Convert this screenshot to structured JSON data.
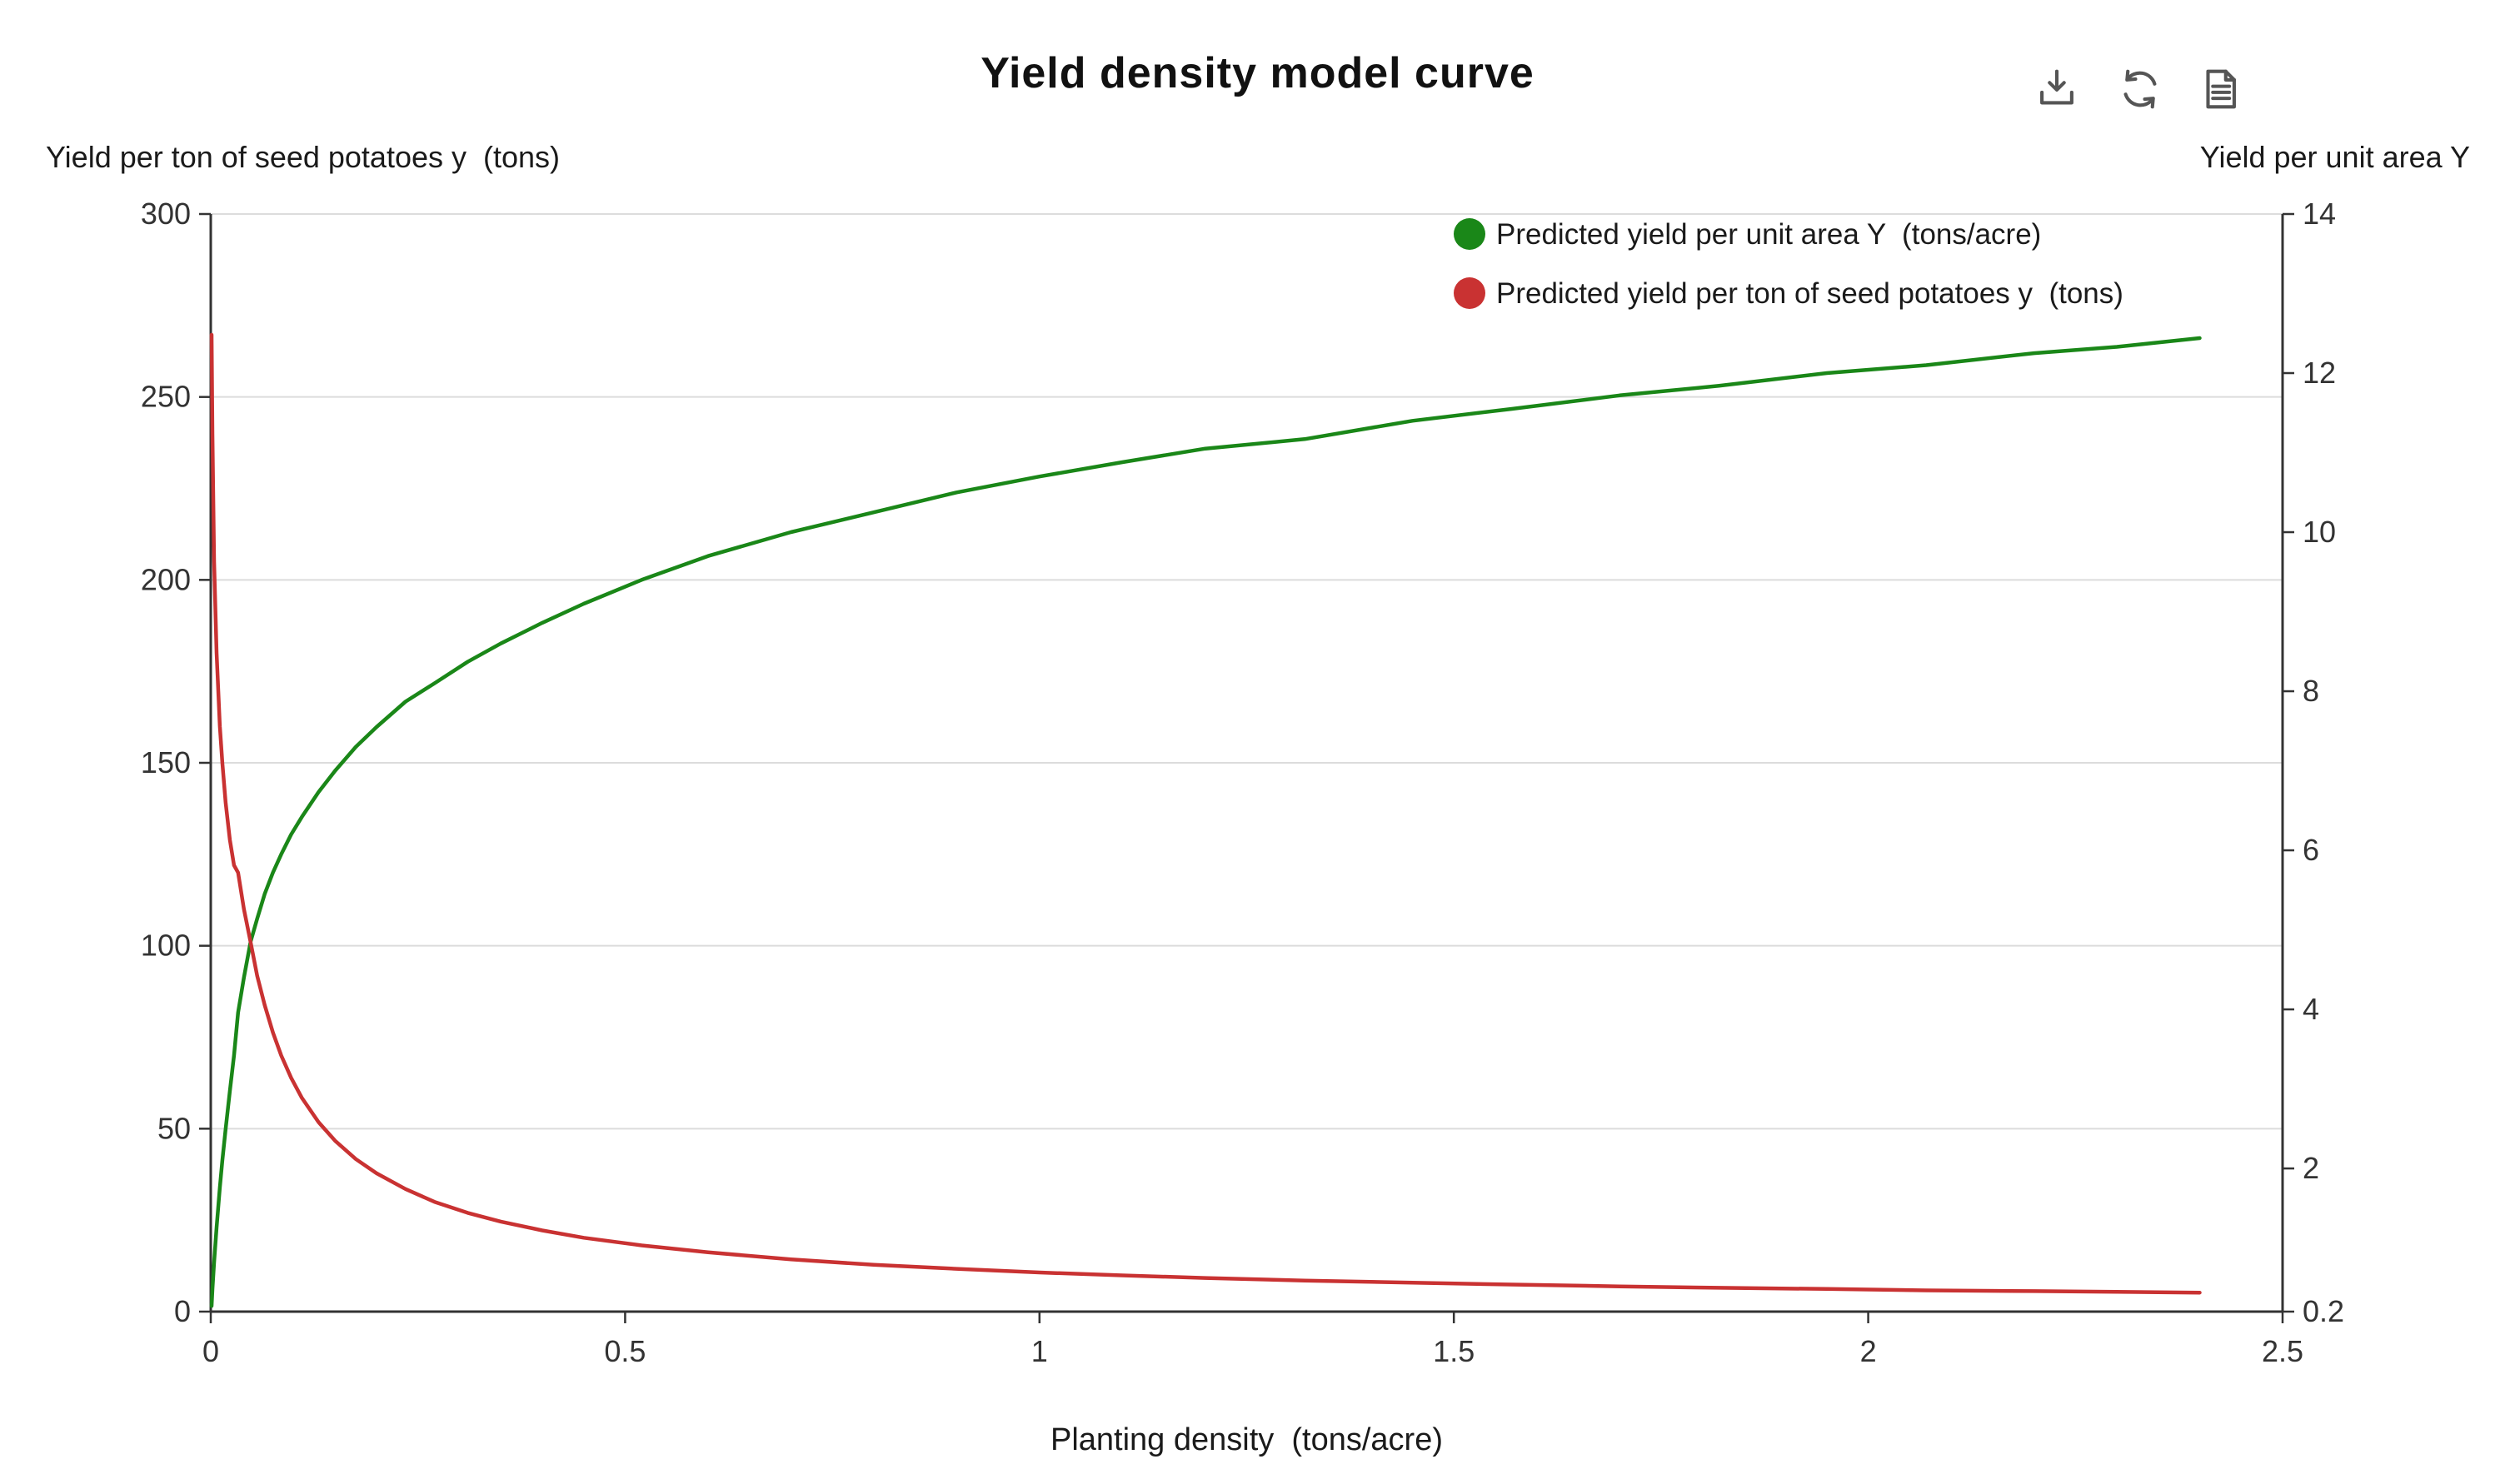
{
  "chart_data": {
    "type": "line",
    "title": "Yield density model curve",
    "x_axis": {
      "label": "Planting density  (tons/acre)",
      "range": [
        0,
        2.5
      ],
      "ticks": [
        "0",
        "0.5",
        "1",
        "1.5",
        "2",
        "2.5"
      ]
    },
    "left_axis": {
      "label": "Yield per ton of seed potatoes y  (tons)",
      "range": [
        0,
        300
      ],
      "ticks": [
        "0",
        "50",
        "100",
        "150",
        "200",
        "250",
        "300"
      ]
    },
    "right_axis": {
      "label": "Yield per unit area Y",
      "range": [
        0.2,
        14
      ],
      "ticks": [
        "0.2",
        "2",
        "4",
        "6",
        "8",
        "10",
        "12",
        "14"
      ]
    },
    "grid": "horizontal-only",
    "legend_position": "top-right-inside",
    "x": [
      0.001,
      0.002,
      0.004,
      0.007,
      0.011,
      0.014,
      0.018,
      0.023,
      0.028,
      0.033,
      0.04,
      0.048,
      0.056,
      0.065,
      0.075,
      0.085,
      0.097,
      0.11,
      0.13,
      0.15,
      0.175,
      0.2,
      0.235,
      0.27,
      0.31,
      0.35,
      0.4,
      0.45,
      0.52,
      0.6,
      0.7,
      0.8,
      0.9,
      1.0,
      1.1,
      1.2,
      1.32,
      1.45,
      1.57,
      1.7,
      1.82,
      1.95,
      2.07,
      2.2,
      2.3,
      2.4
    ],
    "series": [
      {
        "name": "Predicted yield per unit area Y  (tons/acre)",
        "axis": "right",
        "color": "#1a8718",
        "values": [
          0.27,
          0.48,
          0.82,
          1.26,
          1.76,
          2.1,
          2.5,
          2.97,
          3.42,
          3.96,
          4.4,
          4.85,
          5.14,
          5.45,
          5.72,
          5.95,
          6.2,
          6.42,
          6.73,
          7.0,
          7.3,
          7.55,
          7.87,
          8.1,
          8.37,
          8.6,
          8.86,
          9.1,
          9.4,
          9.7,
          10.0,
          10.25,
          10.5,
          10.7,
          10.88,
          11.05,
          11.17,
          11.4,
          11.55,
          11.72,
          11.84,
          12.0,
          12.1,
          12.25,
          12.33,
          12.44
        ]
      },
      {
        "name": "Predicted yield per ton of seed potatoes y  (tons)",
        "axis": "left",
        "color": "#c93232",
        "values": [
          267,
          240,
          205,
          180,
          160,
          150,
          139,
          129,
          122,
          120,
          110,
          101,
          91.8,
          83.8,
          76.3,
          70.0,
          63.9,
          58.4,
          51.8,
          46.7,
          41.7,
          37.8,
          33.5,
          30.0,
          27.0,
          24.6,
          22.2,
          20.2,
          18.1,
          16.2,
          14.3,
          12.8,
          11.7,
          10.7,
          9.9,
          9.2,
          8.5,
          7.9,
          7.4,
          6.9,
          6.5,
          6.2,
          5.8,
          5.6,
          5.4,
          5.2
        ]
      }
    ]
  },
  "toolbar": {
    "icons": [
      "download-icon",
      "refresh-icon",
      "data-view-icon"
    ]
  }
}
